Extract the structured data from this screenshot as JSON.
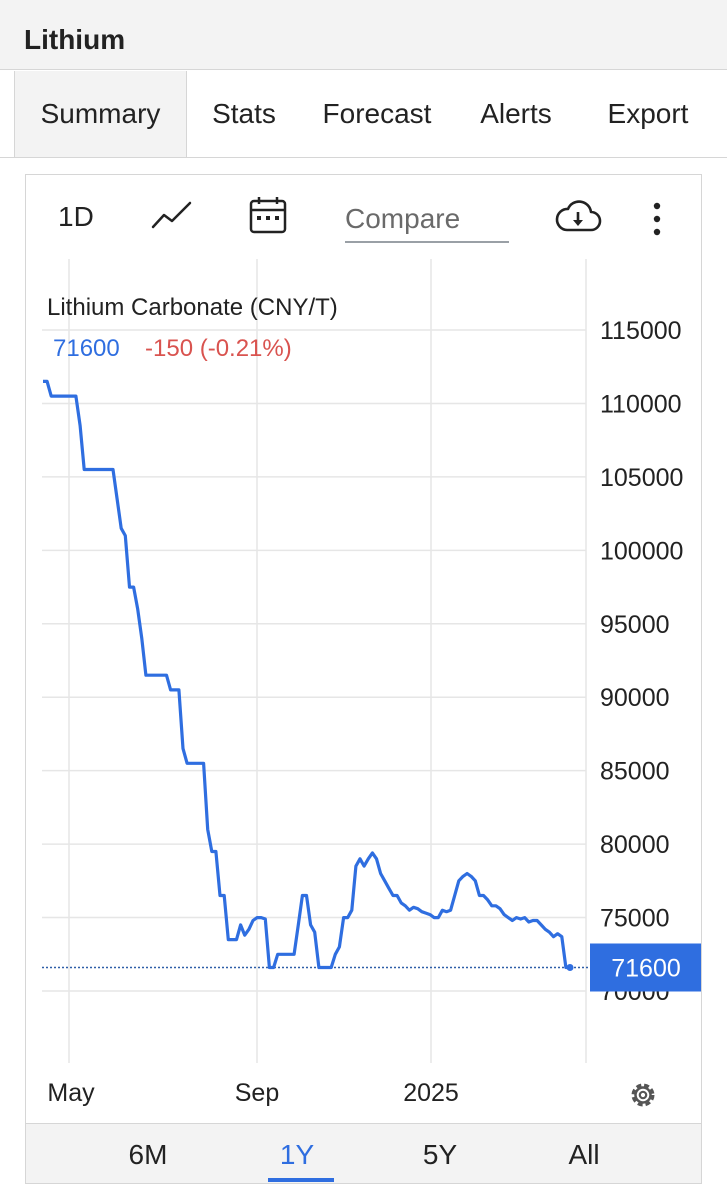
{
  "app": {
    "title": "Lithium"
  },
  "tabs": [
    {
      "label": "Summary",
      "active": true
    },
    {
      "label": "Stats",
      "active": false
    },
    {
      "label": "Forecast",
      "active": false
    },
    {
      "label": "Alerts",
      "active": false
    },
    {
      "label": "Export",
      "active": false
    }
  ],
  "toolbar": {
    "interval_label": "1D",
    "chart_type_icon": "line-chart-icon",
    "calendar_icon": "calendar-icon",
    "compare_placeholder": "Compare",
    "download_icon": "cloud-download-icon",
    "menu_icon": "more-vertical-icon"
  },
  "quote": {
    "name": "Lithium Carbonate (CNY/T)",
    "last": "71600",
    "change": "-150 (-0.21%)",
    "last_color": "#2f6ee0",
    "change_color": "#d9534f"
  },
  "chart_data": {
    "type": "line",
    "y_ticks": [
      70000,
      75000,
      80000,
      85000,
      90000,
      95000,
      100000,
      105000,
      110000,
      115000
    ],
    "x_ticks": [
      "May",
      "Sep",
      "2025"
    ],
    "ylim": [
      65000,
      118000
    ],
    "grid": true,
    "line_color": "#2f6ee0",
    "last_value": 71600,
    "last_value_label": "71600",
    "series": [
      {
        "values": [
          111500,
          111500,
          110500,
          110500,
          110500,
          110500,
          110500,
          110500,
          110500,
          108500,
          105500,
          105500,
          105500,
          105500,
          105500,
          105500,
          105500,
          105500,
          103500,
          101500,
          101000,
          97500,
          97500,
          96000,
          94000,
          91500,
          91500,
          91500,
          91500,
          91500,
          91500,
          90500,
          90500,
          90500,
          86500,
          85500,
          85500,
          85500,
          85500,
          85500,
          81000,
          79500,
          79500,
          76500,
          76500,
          73500,
          73500,
          73500,
          74500,
          73800,
          74200,
          74800,
          75000,
          75000,
          74900,
          71600,
          71600,
          72500,
          72500,
          72500,
          72500,
          72500,
          74500,
          76500,
          76500,
          74500,
          74000,
          71600,
          71600,
          71600,
          71600,
          72500,
          73000,
          75000,
          75000,
          75500,
          78500,
          79000,
          78500,
          79000,
          79400,
          79000,
          78000,
          77500,
          77000,
          76500,
          76500,
          76000,
          75800,
          75500,
          75700,
          75600,
          75400,
          75300,
          75200,
          75000,
          75000,
          75500,
          75400,
          75500,
          76500,
          77500,
          77800,
          78000,
          77800,
          77500,
          76500,
          76500,
          76200,
          75800,
          75800,
          75600,
          75200,
          75000,
          74800,
          75000,
          74900,
          75000,
          74700,
          74800,
          74800,
          74500,
          74200,
          74000,
          73700,
          73900,
          73700,
          71600,
          71600
        ]
      }
    ]
  },
  "settings_icon": "gear-icon",
  "ranges": [
    {
      "label": "6M",
      "active": false
    },
    {
      "label": "1Y",
      "active": true
    },
    {
      "label": "5Y",
      "active": false
    },
    {
      "label": "All",
      "active": false
    }
  ]
}
